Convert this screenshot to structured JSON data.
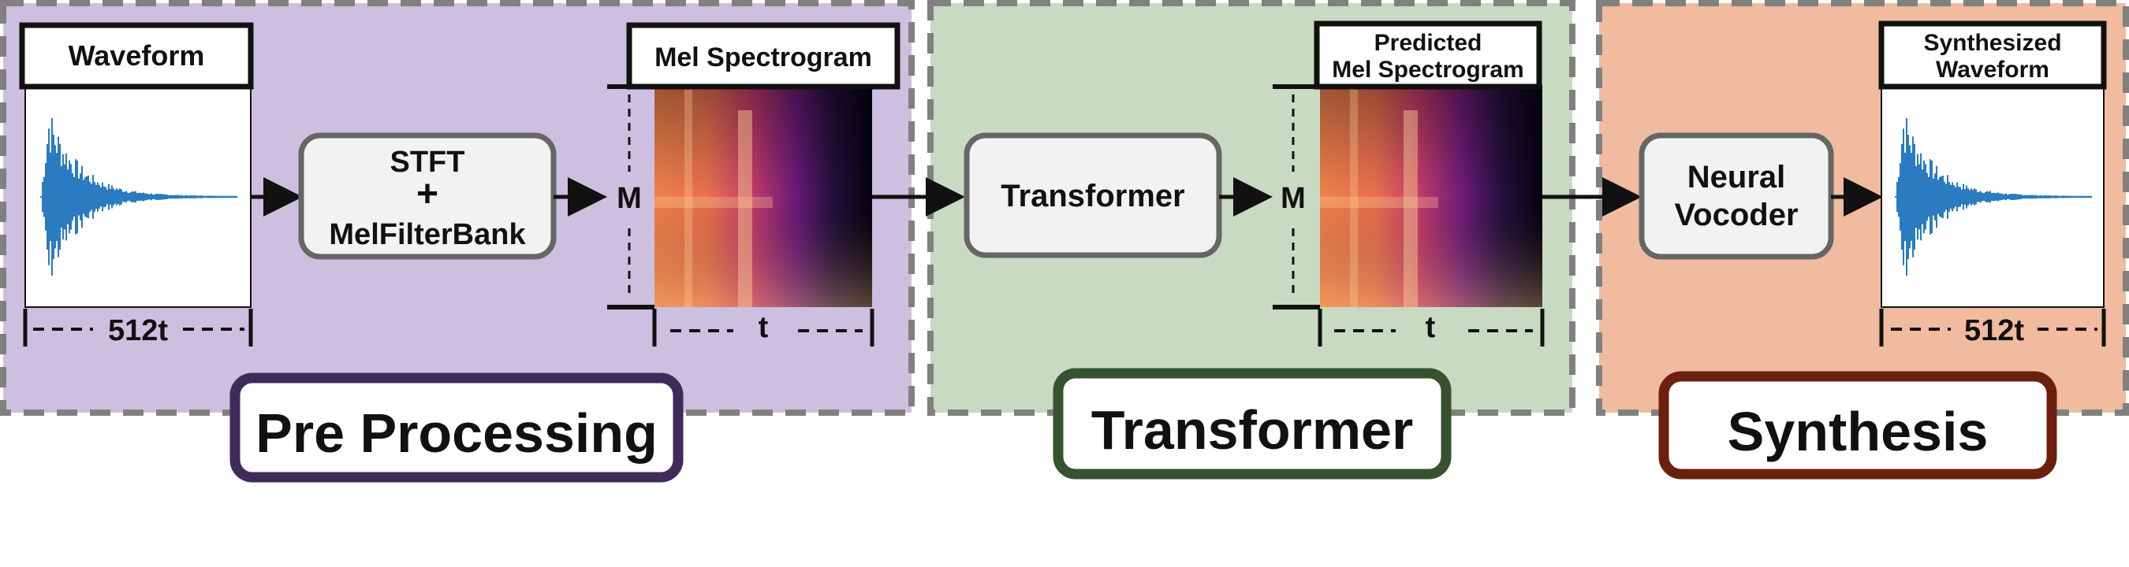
{
  "colors": {
    "preprocessing_panel": "#cdbfdf",
    "transformer_panel": "#c8dbc2",
    "synthesis_panel": "#f0bb9f",
    "preprocessing_border": "#3f2a5a",
    "transformer_border": "#37522e",
    "synthesis_border": "#6b200d",
    "waveform": "#2a7bbf",
    "process_box_fill": "#f2f2f2",
    "process_box_stroke": "#666666",
    "dashed_border": "#808080",
    "line": "#111111"
  },
  "sections": {
    "preprocessing": {
      "label": "Pre Processing"
    },
    "transformer": {
      "label": "Transformer"
    },
    "synthesis": {
      "label": "Synthesis"
    }
  },
  "input_waveform": {
    "title": "Waveform",
    "length_label": "512t",
    "icon": "waveform-icon"
  },
  "stft_box": {
    "line1": "STFT",
    "line2": "+",
    "line3": "MelFilterBank"
  },
  "mel_spectrogram": {
    "title": "Mel Spectrogram",
    "height_label": "M",
    "width_label": "t",
    "icon": "spectrogram-icon"
  },
  "transformer_box": {
    "label": "Transformer"
  },
  "predicted_mel": {
    "title_line1": "Predicted",
    "title_line2": "Mel Spectrogram",
    "height_label": "M",
    "width_label": "t",
    "icon": "spectrogram-icon"
  },
  "vocoder_box": {
    "line1": "Neural",
    "line2": "Vocoder"
  },
  "output_waveform": {
    "title_line1": "Synthesized",
    "title_line2": "Waveform",
    "length_label": "512t",
    "icon": "waveform-icon"
  }
}
